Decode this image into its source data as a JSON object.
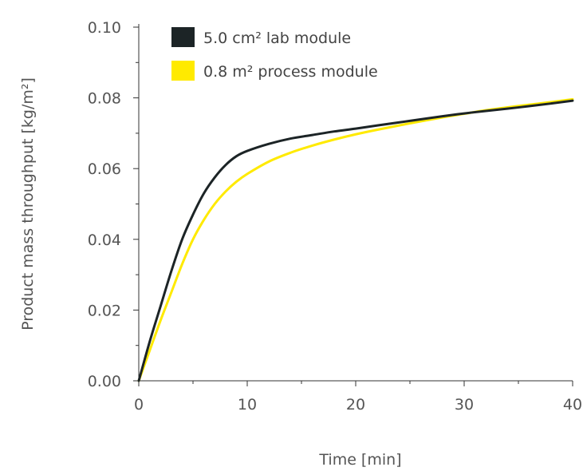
{
  "chart_data": {
    "type": "line",
    "xlabel": "Time [min]",
    "ylabel": "Product mass throughput [kg/m²]",
    "xlim": [
      0,
      40
    ],
    "ylim": [
      0,
      0.1
    ],
    "xticks": [
      0,
      10,
      20,
      30,
      40
    ],
    "xtick_labels": [
      "0",
      "10",
      "20",
      "30",
      "40"
    ],
    "yticks": [
      0,
      0.02,
      0.04,
      0.06,
      0.08,
      0.1
    ],
    "ytick_labels": [
      "0.00",
      "0.02",
      "0.04",
      "0.06",
      "0.08",
      "0.10"
    ],
    "grid": false,
    "legend_position": "top-left",
    "series": [
      {
        "name": "5.0 cm² lab module",
        "color": "#1c2426",
        "x": [
          0,
          1,
          2,
          3,
          4,
          5,
          6,
          7,
          8,
          9,
          10,
          12,
          14,
          16,
          18,
          20,
          22,
          25,
          28,
          30,
          32,
          35,
          38,
          40
        ],
        "y": [
          0.0,
          0.011,
          0.021,
          0.031,
          0.04,
          0.047,
          0.053,
          0.0575,
          0.061,
          0.0635,
          0.065,
          0.067,
          0.0685,
          0.0695,
          0.0705,
          0.0713,
          0.0722,
          0.0735,
          0.0748,
          0.0756,
          0.0763,
          0.0773,
          0.0784,
          0.0792
        ]
      },
      {
        "name": "0.8 m² process module",
        "color": "#ffea00",
        "x": [
          0,
          1,
          2,
          3,
          4,
          5,
          6,
          7,
          8,
          9,
          10,
          12,
          14,
          16,
          18,
          20,
          22,
          25,
          28,
          30,
          32,
          35,
          38,
          40
        ],
        "y": [
          0.0,
          0.0085,
          0.017,
          0.025,
          0.033,
          0.04,
          0.0455,
          0.05,
          0.0535,
          0.0563,
          0.0585,
          0.062,
          0.0645,
          0.0665,
          0.0682,
          0.0697,
          0.071,
          0.0728,
          0.0745,
          0.0755,
          0.0765,
          0.0777,
          0.0788,
          0.0796
        ]
      }
    ]
  }
}
